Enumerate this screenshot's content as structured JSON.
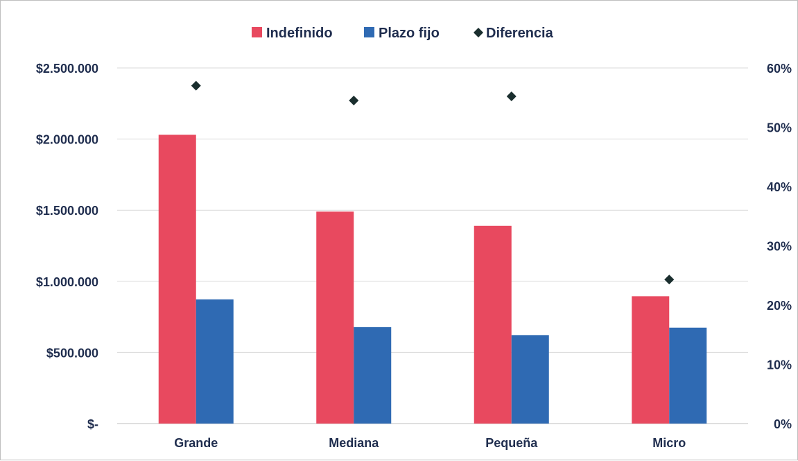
{
  "chart_data": {
    "type": "bar",
    "title": "",
    "categories": [
      "Grande",
      "Mediana",
      "Pequeña",
      "Micro"
    ],
    "series": [
      {
        "name": "Indefinido",
        "kind": "bar",
        "axis": "left",
        "color": "#e8495f",
        "values": [
          2030000,
          1490000,
          1390000,
          895000
        ]
      },
      {
        "name": "Plazo fijo",
        "kind": "bar",
        "axis": "left",
        "color": "#2f6ab3",
        "values": [
          873000,
          678000,
          622000,
          674000
        ]
      },
      {
        "name": "Diferencia",
        "kind": "scatter",
        "marker": "diamond",
        "axis": "right",
        "color": "#1a2e2e",
        "values": [
          0.57,
          0.545,
          0.552,
          0.243
        ]
      }
    ],
    "y_left": {
      "range": [
        0,
        2500000
      ],
      "tick_labels": [
        "$-",
        "$500.000",
        "$1.000.000",
        "$1.500.000",
        "$2.000.000",
        "$2.500.000"
      ]
    },
    "y_right": {
      "range": [
        0,
        0.6
      ],
      "tick_labels": [
        "0%",
        "10%",
        "20%",
        "30%",
        "40%",
        "50%",
        "60%"
      ]
    },
    "grid": true,
    "legend_position": "top-center"
  }
}
